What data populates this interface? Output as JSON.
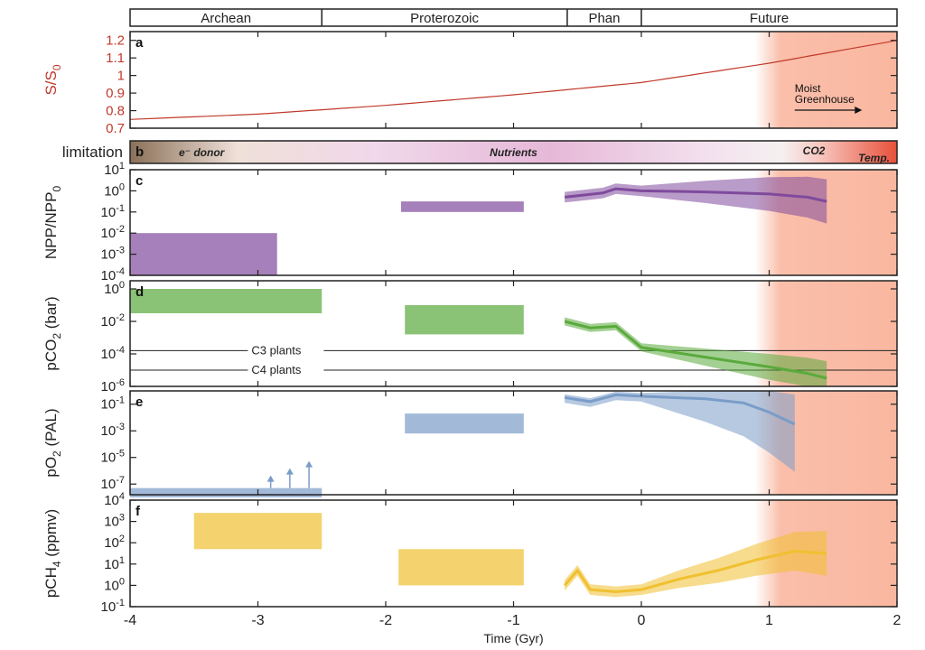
{
  "eons": [
    {
      "label": "Archean",
      "from": -4,
      "to": -2.5
    },
    {
      "label": "Proterozoic",
      "from": -2.5,
      "to": -0.58
    },
    {
      "label": "Phan",
      "from": -0.58,
      "to": 0
    },
    {
      "label": "Future",
      "from": 0,
      "to": 2
    }
  ],
  "chart_data": {
    "type": "line",
    "xlabel": "Time (Gyr)",
    "xlim": [
      -4,
      2
    ],
    "xticks": [
      "-4",
      "-3",
      "-2",
      "-1",
      "0",
      "1",
      "2"
    ],
    "colors": {
      "shade": "#f9b39b",
      "red": "#c0392b",
      "purple": "#7f4a9c",
      "green": "#5aaa3c",
      "blue": "#7a9cc8",
      "yellow": "#f0c030"
    },
    "shade_start": 1.1,
    "panels": [
      {
        "letter": "a",
        "ylabel": "S/S0",
        "ylabel_main": "S/S",
        "ylabel_sub": "0",
        "ylabel_color": "#c0392b",
        "scale": "linear",
        "ylim": [
          0.7,
          1.25
        ],
        "ticks": [
          "0.7",
          "0.8",
          "0.9",
          "1",
          "1.1",
          "1.2"
        ],
        "series": [
          {
            "name": "solar luminosity",
            "x": [
              -4,
              -3,
              -2,
              -1,
              0,
              1,
              2
            ],
            "y": [
              0.75,
              0.78,
              0.83,
              0.89,
              0.96,
              1.07,
              1.2
            ]
          }
        ],
        "annotation": {
          "line1": "Moist",
          "line2": "Greenhouse"
        }
      },
      {
        "letter": "b",
        "ylabel": "limitation",
        "band_labels": [
          "e⁻ donor",
          "Nutrients",
          "CO2",
          "Temp."
        ]
      },
      {
        "letter": "c",
        "ylabel": "NPP/NPP0",
        "ylabel_main": "NPP/NPP",
        "ylabel_sub": "0",
        "scale": "log",
        "ylim": [
          -4,
          1
        ],
        "ticks": [
          "10^1",
          "10^0",
          "10^-1",
          "10^-2",
          "10^-3",
          "10^-4"
        ],
        "boxes": [
          {
            "x0": -4,
            "x1": -2.85,
            "y0": -4,
            "y1": -2
          },
          {
            "x0": -1.88,
            "x1": -0.92,
            "y0": -1,
            "y1": -0.5
          }
        ],
        "series": [
          {
            "name": "NPP median",
            "x": [
              -0.6,
              -0.3,
              -0.2,
              0,
              0.5,
              1,
              1.3,
              1.45
            ],
            "y": [
              -0.3,
              -0.1,
              0.1,
              0,
              -0.05,
              -0.15,
              -0.3,
              -0.5
            ]
          }
        ]
      },
      {
        "letter": "d",
        "ylabel": "pCO2 (bar)",
        "ylabel_main": "pCO",
        "ylabel_sub": "2",
        "ylabel_tail": " (bar)",
        "scale": "log",
        "ylim": [
          -6,
          0.5
        ],
        "ticks": [
          "10^0",
          "10^-2",
          "10^-4",
          "10^-6"
        ],
        "hlines": [
          {
            "label": "C3 plants",
            "y": -3.8
          },
          {
            "label": "C4 plants",
            "y": -5
          }
        ],
        "boxes": [
          {
            "x0": -4,
            "x1": -2.5,
            "y0": -1.5,
            "y1": 0
          },
          {
            "x0": -1.85,
            "x1": -0.92,
            "y0": -2.8,
            "y1": -1
          }
        ],
        "series": [
          {
            "name": "pCO2 median",
            "x": [
              -0.6,
              -0.4,
              -0.2,
              0,
              0.5,
              1,
              1.3,
              1.45
            ],
            "y": [
              -2,
              -2.4,
              -2.3,
              -3.6,
              -4.2,
              -4.8,
              -5.2,
              -5.5
            ]
          }
        ]
      },
      {
        "letter": "e",
        "ylabel": "pO2 (PAL)",
        "ylabel_main": "pO",
        "ylabel_sub": "2",
        "ylabel_tail": " (PAL)",
        "scale": "log",
        "ylim": [
          -7.8,
          0
        ],
        "ticks": [
          "10^-1",
          "10^-3",
          "10^-5",
          "10^-7"
        ],
        "boxes": [
          {
            "x0": -4,
            "x1": -2.5,
            "y0": -8,
            "y1": -7.3
          },
          {
            "x0": -1.85,
            "x1": -0.92,
            "y0": -3.2,
            "y1": -1.7
          }
        ],
        "arrows_x": [
          -2.9,
          -2.75,
          -2.6
        ],
        "series": [
          {
            "name": "pO2 median",
            "x": [
              -0.6,
              -0.4,
              -0.2,
              0,
              0.5,
              0.8,
              1,
              1.2
            ],
            "y": [
              -0.5,
              -0.8,
              -0.3,
              -0.4,
              -0.6,
              -0.9,
              -1.6,
              -2.5
            ]
          }
        ]
      },
      {
        "letter": "f",
        "ylabel": "pCH4 (ppmv)",
        "ylabel_main": "pCH",
        "ylabel_sub": "4",
        "ylabel_tail": " (ppmv)",
        "scale": "log",
        "ylim": [
          -1,
          4
        ],
        "ticks": [
          "10^4",
          "10^3",
          "10^2",
          "10^1",
          "10^0",
          "10^-1"
        ],
        "boxes": [
          {
            "x0": -3.5,
            "x1": -2.5,
            "y0": 1.7,
            "y1": 3.4
          },
          {
            "x0": -1.9,
            "x1": -0.92,
            "y0": 0,
            "y1": 1.7
          }
        ],
        "series": [
          {
            "name": "pCH4 median",
            "x": [
              -0.6,
              -0.5,
              -0.4,
              -0.2,
              0,
              0.3,
              0.6,
              0.9,
              1.2,
              1.45
            ],
            "y": [
              0,
              0.7,
              -0.2,
              -0.3,
              -0.2,
              0.3,
              0.7,
              1.2,
              1.6,
              1.5
            ]
          }
        ]
      }
    ]
  }
}
